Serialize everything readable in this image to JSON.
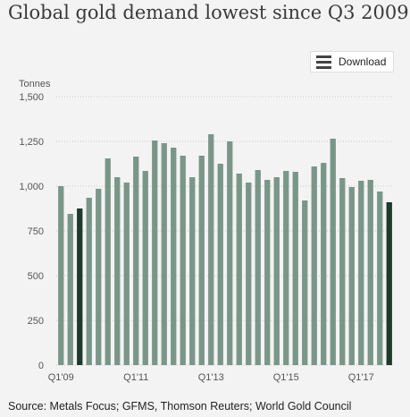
{
  "header": {
    "title": "Global gold demand lowest since Q3 2009"
  },
  "toolbar": {
    "download_label": "Download",
    "download_icon": "menu-icon"
  },
  "footer": {
    "source": "Source: Metals Focus; GFMS, Thomson Reuters; World Gold Council"
  },
  "colors": {
    "bar": "#7a9689",
    "highlight": "#1e3a2c",
    "grid": "#c8c8c8"
  },
  "chart_data": {
    "type": "bar",
    "ylabel": "Tonnes",
    "ylim": [
      0,
      1500
    ],
    "yticks": [
      "0",
      "250",
      "500",
      "750",
      "1,000",
      "1,250",
      "1,500"
    ],
    "grid": "horizontal dotted",
    "xticks": [
      {
        "index": 0,
        "label": "Q1'09"
      },
      {
        "index": 8,
        "label": "Q1'11"
      },
      {
        "index": 16,
        "label": "Q1'13"
      },
      {
        "index": 24,
        "label": "Q1'15"
      },
      {
        "index": 32,
        "label": "Q1'17"
      }
    ],
    "values": [
      1000,
      845,
      875,
      935,
      985,
      1155,
      1050,
      1020,
      1165,
      1085,
      1255,
      1240,
      1215,
      1170,
      1050,
      1170,
      1290,
      1125,
      1250,
      1070,
      1020,
      1090,
      1035,
      1050,
      1085,
      1080,
      920,
      1110,
      1130,
      1265,
      1045,
      995,
      1030,
      1035,
      970,
      910
    ],
    "highlighted_indices": [
      2,
      35
    ]
  }
}
